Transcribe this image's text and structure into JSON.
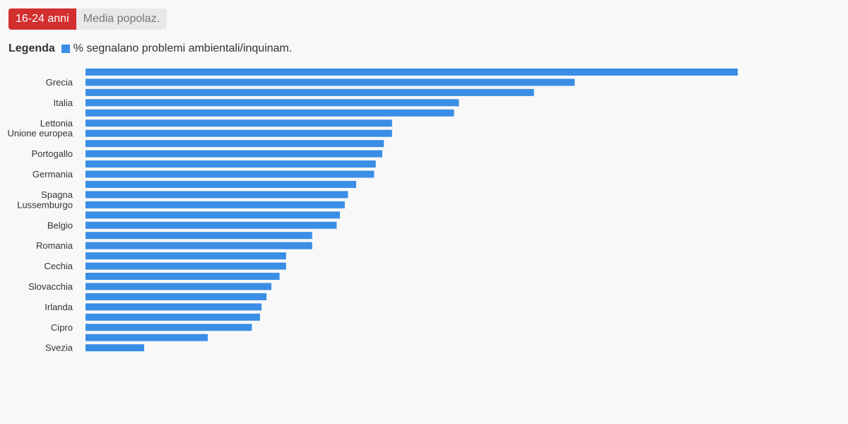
{
  "tabs": {
    "active_label": "16-24 anni",
    "inactive_label": "Media popolaz."
  },
  "legend": {
    "title": "Legenda",
    "series_label": "% segnalano problemi ambientali/inquinam."
  },
  "colors": {
    "bar": "#3a8ee6",
    "active_tab": "#d32f2f",
    "inactive_tab": "#e8e8e8",
    "text": "#333333",
    "background": "#f8f8f8"
  },
  "chart_data": {
    "type": "bar",
    "orientation": "horizontal",
    "categories": [
      "",
      "Grecia",
      "",
      "Italia",
      "",
      "Lettonia",
      "Unione europea",
      "",
      "Portogallo",
      "",
      "Germania",
      "",
      "Spagna",
      "Lussemburgo",
      "",
      "Belgio",
      "",
      "Romania",
      "",
      "Cechia",
      "",
      "Slovacchia",
      "",
      "Irlanda",
      "",
      "Cipro",
      "",
      "Svezia"
    ],
    "series": [
      {
        "name": "% segnalano problemi ambientali/inquinam.",
        "values": [
          40.0,
          30.0,
          27.5,
          22.9,
          22.6,
          18.8,
          18.8,
          18.3,
          18.2,
          17.8,
          17.7,
          16.6,
          16.1,
          15.9,
          15.6,
          15.4,
          13.9,
          13.9,
          12.3,
          12.3,
          11.9,
          11.4,
          11.1,
          10.8,
          10.7,
          10.2,
          7.5,
          3.6
        ]
      }
    ],
    "xlim": [
      0,
      40
    ],
    "grid": false,
    "legend_position": "top-left"
  }
}
